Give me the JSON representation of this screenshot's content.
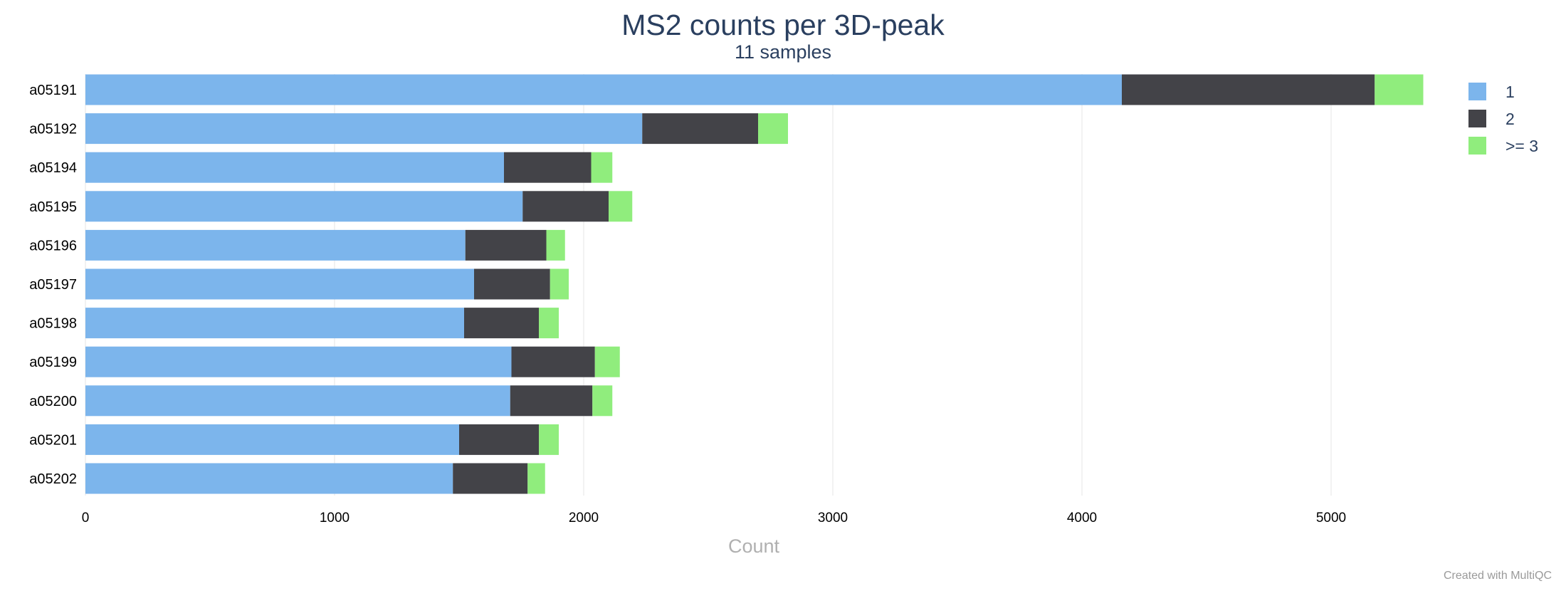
{
  "chart_data": {
    "type": "bar",
    "orientation": "horizontal",
    "stacked": true,
    "title": "MS2 counts per 3D-peak",
    "subtitle": "11 samples",
    "xlabel": "Count",
    "ylabel": "",
    "xlim": [
      0,
      5700
    ],
    "xticks": [
      0,
      1000,
      2000,
      3000,
      4000,
      5000
    ],
    "grid": true,
    "legend_position": "top-right",
    "categories": [
      "a05191",
      "a05192",
      "a05194",
      "a05195",
      "a05196",
      "a05197",
      "a05198",
      "a05199",
      "a05200",
      "a05201",
      "a05202"
    ],
    "series": [
      {
        "name": "1",
        "color": "#7cb5ec",
        "values": [
          4160,
          2235,
          1680,
          1755,
          1525,
          1560,
          1520,
          1710,
          1705,
          1500,
          1475
        ]
      },
      {
        "name": "2",
        "color": "#434348",
        "values": [
          1015,
          465,
          350,
          345,
          325,
          305,
          300,
          335,
          330,
          320,
          300
        ]
      },
      {
        "name": ">= 3",
        "color": "#90ed7d",
        "values": [
          195,
          120,
          85,
          95,
          75,
          75,
          80,
          100,
          80,
          80,
          70
        ]
      }
    ]
  },
  "credit": "Created with MultiQC"
}
